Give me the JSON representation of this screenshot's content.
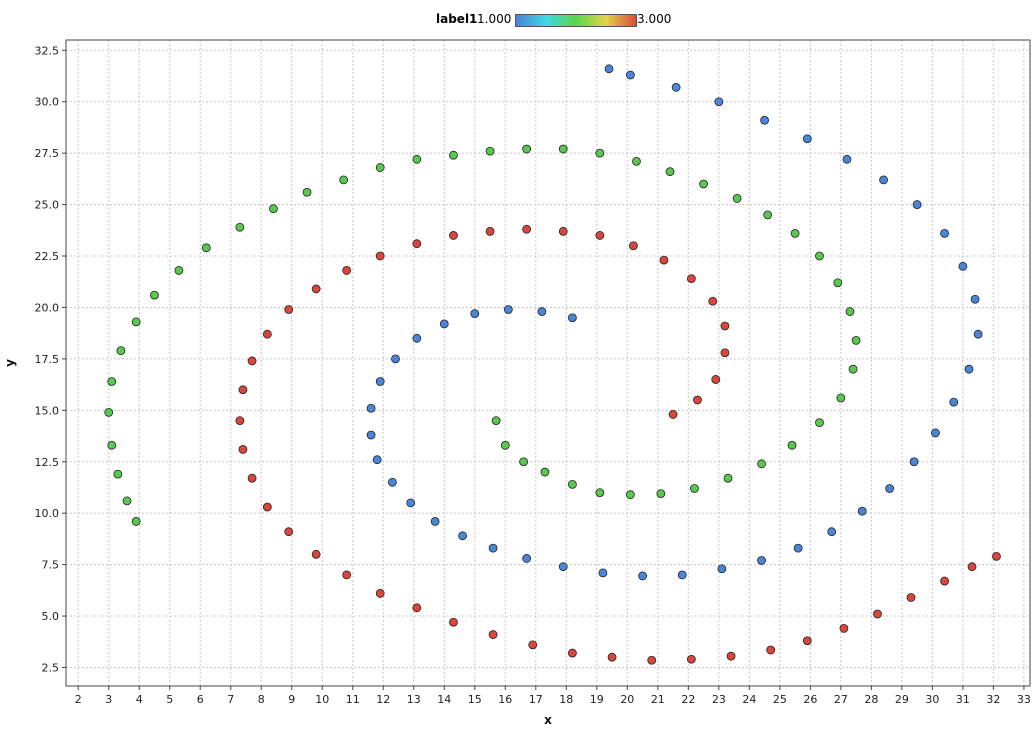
{
  "chart_data": {
    "type": "scatter",
    "xlabel": "x",
    "ylabel": "y",
    "xlim": [
      1.6,
      33.2
    ],
    "ylim": [
      1.6,
      33.0
    ],
    "xticks": [
      2,
      3,
      4,
      5,
      6,
      7,
      8,
      9,
      10,
      11,
      12,
      13,
      14,
      15,
      16,
      17,
      18,
      19,
      20,
      21,
      22,
      23,
      24,
      25,
      26,
      27,
      28,
      29,
      30,
      31,
      32,
      33
    ],
    "yticks": [
      2.5,
      5.0,
      7.5,
      10.0,
      12.5,
      15.0,
      17.5,
      20.0,
      22.5,
      25.0,
      27.5,
      30.0,
      32.5
    ],
    "grid": true,
    "legend": {
      "title": "label1",
      "min_label": "1.000",
      "max_label": "3.000",
      "colormap": [
        "#4b82d6",
        "#3fd8e8",
        "#58d64a",
        "#e4d44a",
        "#d84a3a"
      ],
      "placement": "top-center"
    },
    "series": [
      {
        "label_value": 1,
        "color": "#4a86d8",
        "points": [
          [
            18.2,
            19.5
          ],
          [
            17.2,
            19.8
          ],
          [
            16.1,
            19.9
          ],
          [
            15.0,
            19.7
          ],
          [
            14.0,
            19.2
          ],
          [
            13.1,
            18.5
          ],
          [
            12.4,
            17.5
          ],
          [
            11.9,
            16.4
          ],
          [
            11.6,
            15.1
          ],
          [
            11.6,
            13.8
          ],
          [
            11.8,
            12.6
          ],
          [
            12.3,
            11.5
          ],
          [
            12.9,
            10.5
          ],
          [
            13.7,
            9.6
          ],
          [
            14.6,
            8.9
          ],
          [
            15.6,
            8.3
          ],
          [
            16.7,
            7.8
          ],
          [
            17.9,
            7.4
          ],
          [
            19.2,
            7.1
          ],
          [
            20.5,
            6.95
          ],
          [
            21.8,
            7.0
          ],
          [
            23.1,
            7.3
          ],
          [
            24.4,
            7.7
          ],
          [
            25.6,
            8.3
          ],
          [
            26.7,
            9.1
          ],
          [
            27.7,
            10.1
          ],
          [
            28.6,
            11.2
          ],
          [
            29.4,
            12.5
          ],
          [
            30.1,
            13.9
          ],
          [
            30.7,
            15.4
          ],
          [
            31.2,
            17.0
          ],
          [
            31.5,
            18.7
          ],
          [
            31.4,
            20.4
          ],
          [
            31.0,
            22.0
          ],
          [
            30.4,
            23.6
          ],
          [
            29.5,
            25.0
          ],
          [
            28.4,
            26.2
          ],
          [
            27.2,
            27.2
          ],
          [
            25.9,
            28.2
          ],
          [
            24.5,
            29.1
          ],
          [
            23.0,
            30.0
          ],
          [
            21.6,
            30.7
          ],
          [
            20.1,
            31.3
          ],
          [
            19.4,
            31.6
          ]
        ]
      },
      {
        "label_value": 2,
        "color": "#58c84e",
        "points": [
          [
            15.7,
            14.5
          ],
          [
            16.0,
            13.3
          ],
          [
            16.6,
            12.5
          ],
          [
            17.3,
            12.0
          ],
          [
            18.2,
            11.4
          ],
          [
            19.1,
            11.0
          ],
          [
            20.1,
            10.9
          ],
          [
            21.1,
            10.95
          ],
          [
            22.2,
            11.2
          ],
          [
            23.3,
            11.7
          ],
          [
            24.4,
            12.4
          ],
          [
            25.4,
            13.3
          ],
          [
            26.3,
            14.4
          ],
          [
            27.0,
            15.6
          ],
          [
            27.4,
            17.0
          ],
          [
            27.5,
            18.4
          ],
          [
            27.3,
            19.8
          ],
          [
            26.9,
            21.2
          ],
          [
            26.3,
            22.5
          ],
          [
            25.5,
            23.6
          ],
          [
            24.6,
            24.5
          ],
          [
            23.6,
            25.3
          ],
          [
            22.5,
            26.0
          ],
          [
            21.4,
            26.6
          ],
          [
            20.3,
            27.1
          ],
          [
            19.1,
            27.5
          ],
          [
            17.9,
            27.7
          ],
          [
            16.7,
            27.7
          ],
          [
            15.5,
            27.6
          ],
          [
            14.3,
            27.4
          ],
          [
            13.1,
            27.2
          ],
          [
            11.9,
            26.8
          ],
          [
            10.7,
            26.2
          ],
          [
            9.5,
            25.6
          ],
          [
            8.4,
            24.8
          ],
          [
            7.3,
            23.9
          ],
          [
            6.2,
            22.9
          ],
          [
            5.3,
            21.8
          ],
          [
            4.5,
            20.6
          ],
          [
            3.9,
            19.3
          ],
          [
            3.4,
            17.9
          ],
          [
            3.1,
            16.4
          ],
          [
            3.0,
            14.9
          ],
          [
            3.1,
            13.3
          ],
          [
            3.3,
            11.9
          ],
          [
            3.6,
            10.6
          ],
          [
            3.9,
            9.6
          ]
        ]
      },
      {
        "label_value": 3,
        "color": "#d9463c",
        "points": [
          [
            21.5,
            14.8
          ],
          [
            22.3,
            15.5
          ],
          [
            22.9,
            16.5
          ],
          [
            23.2,
            17.8
          ],
          [
            23.2,
            19.1
          ],
          [
            22.8,
            20.3
          ],
          [
            22.1,
            21.4
          ],
          [
            21.2,
            22.3
          ],
          [
            20.2,
            23.0
          ],
          [
            19.1,
            23.5
          ],
          [
            17.9,
            23.7
          ],
          [
            16.7,
            23.8
          ],
          [
            15.5,
            23.7
          ],
          [
            14.3,
            23.5
          ],
          [
            13.1,
            23.1
          ],
          [
            11.9,
            22.5
          ],
          [
            10.8,
            21.8
          ],
          [
            9.8,
            20.9
          ],
          [
            8.9,
            19.9
          ],
          [
            8.2,
            18.7
          ],
          [
            7.7,
            17.4
          ],
          [
            7.4,
            16.0
          ],
          [
            7.3,
            14.5
          ],
          [
            7.4,
            13.1
          ],
          [
            7.7,
            11.7
          ],
          [
            8.2,
            10.3
          ],
          [
            8.9,
            9.1
          ],
          [
            9.8,
            8.0
          ],
          [
            10.8,
            7.0
          ],
          [
            11.9,
            6.1
          ],
          [
            13.1,
            5.4
          ],
          [
            14.3,
            4.7
          ],
          [
            15.6,
            4.1
          ],
          [
            16.9,
            3.6
          ],
          [
            18.2,
            3.2
          ],
          [
            19.5,
            3.0
          ],
          [
            20.8,
            2.85
          ],
          [
            22.1,
            2.9
          ],
          [
            23.4,
            3.05
          ],
          [
            24.7,
            3.35
          ],
          [
            25.9,
            3.8
          ],
          [
            27.1,
            4.4
          ],
          [
            28.2,
            5.1
          ],
          [
            29.3,
            5.9
          ],
          [
            30.4,
            6.7
          ],
          [
            31.3,
            7.4
          ],
          [
            32.1,
            7.9
          ]
        ]
      }
    ]
  }
}
